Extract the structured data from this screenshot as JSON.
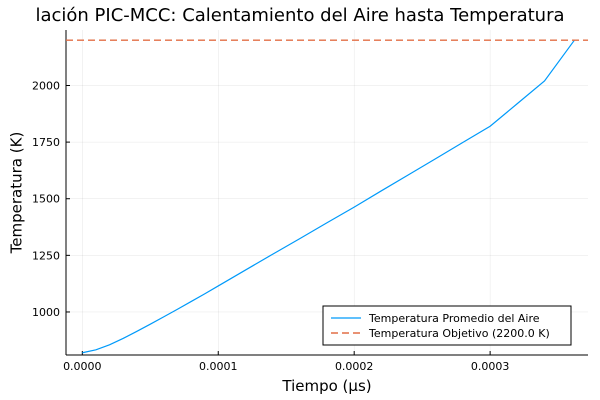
{
  "chart_data": {
    "type": "line",
    "title": "lación PIC-MCC: Calentamiento del Aire hasta Temperatura",
    "xlabel": "Tiempo (µs)",
    "ylabel": "Temperatura (K)",
    "xlim": [
      -1.2e-05,
      0.000372
    ],
    "ylim": [
      810,
      2245
    ],
    "xticks": [
      0.0,
      0.0001,
      0.0002,
      0.0003
    ],
    "xtick_labels": [
      "0.0000",
      "0.0001",
      "0.0002",
      "0.0003"
    ],
    "yticks": [
      1000,
      1250,
      1500,
      1750,
      2000
    ],
    "ytick_labels": [
      "1000",
      "1250",
      "1500",
      "1750",
      "2000"
    ],
    "grid": true,
    "legend_position": "bottom-right",
    "series": [
      {
        "name": "Temperatura Promedio del Aire",
        "color": "#009AFA",
        "style": "solid",
        "x": [
          0.0,
          1e-05,
          2e-05,
          3e-05,
          4e-05,
          5e-05,
          6e-05,
          7e-05,
          8e-05,
          9e-05,
          0.0001,
          0.00012,
          0.00014,
          0.00016,
          0.00018,
          0.0002,
          0.00022,
          0.00024,
          0.00026,
          0.00028,
          0.0003,
          0.00032,
          0.00034,
          0.000362
        ],
        "y": [
          820,
          833,
          855,
          883,
          914,
          946,
          979,
          1012,
          1046,
          1080,
          1115,
          1185,
          1255,
          1324,
          1394,
          1463,
          1535,
          1606,
          1677,
          1749,
          1820,
          1920,
          2020,
          2200
        ]
      },
      {
        "name": "Temperatura Objetivo (2200.0 K)",
        "color": "#E26F46",
        "style": "dashed",
        "x": [
          -1.2e-05,
          0.000372
        ],
        "y": [
          2200,
          2200
        ]
      }
    ]
  }
}
